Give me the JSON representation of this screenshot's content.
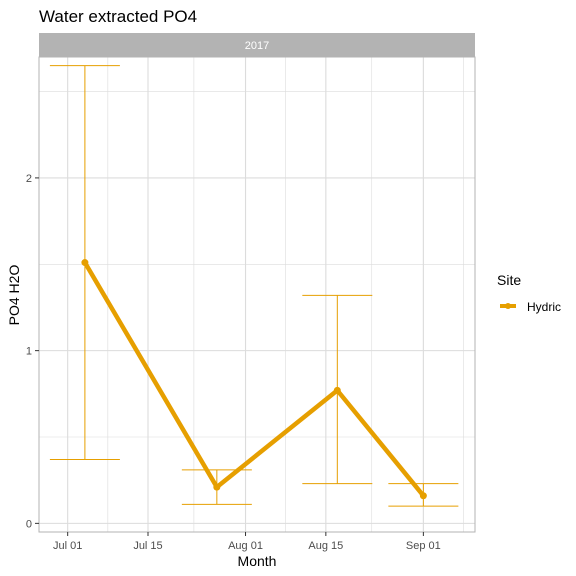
{
  "chart_data": {
    "type": "line",
    "title": "Water extracted PO4",
    "facet_label": "2017",
    "xlabel": "Month",
    "ylabel": "PO4 H2O",
    "x_axis_type": "date",
    "xlim": [
      "2017-06-26",
      "2017-09-10"
    ],
    "ylim": [
      -0.05,
      2.7
    ],
    "x_ticks": [
      {
        "date": "2017-07-01",
        "label": "Jul 01"
      },
      {
        "date": "2017-07-15",
        "label": "Jul 15"
      },
      {
        "date": "2017-08-01",
        "label": "Aug 01"
      },
      {
        "date": "2017-08-15",
        "label": "Aug 15"
      },
      {
        "date": "2017-09-01",
        "label": "Sep 01"
      }
    ],
    "y_ticks": [
      {
        "value": 0,
        "label": "0"
      },
      {
        "value": 1,
        "label": "1"
      },
      {
        "value": 2,
        "label": "2"
      }
    ],
    "y_minor_ticks": [
      0.5,
      1.5,
      2.5
    ],
    "x_minor_ticks": [
      "2017-07-08",
      "2017-07-23",
      "2017-08-08",
      "2017-08-23",
      "2017-09-08"
    ],
    "grid": true,
    "legend_position": "right",
    "legend_title": "Site",
    "colors": {
      "series": "#E69F00",
      "strip_bg": "#b3b3b3",
      "grid": "#dcdcdc",
      "panel_border": "#b3b3b3"
    },
    "series": [
      {
        "name": "Hydric",
        "points": [
          {
            "x": "2017-07-04",
            "y": 1.51,
            "ymin": 0.37,
            "ymax": 2.65
          },
          {
            "x": "2017-07-27",
            "y": 0.21,
            "ymin": 0.11,
            "ymax": 0.31
          },
          {
            "x": "2017-08-17",
            "y": 0.77,
            "ymin": 0.23,
            "ymax": 1.32
          },
          {
            "x": "2017-09-01",
            "y": 0.16,
            "ymin": 0.1,
            "ymax": 0.23
          }
        ]
      }
    ]
  }
}
